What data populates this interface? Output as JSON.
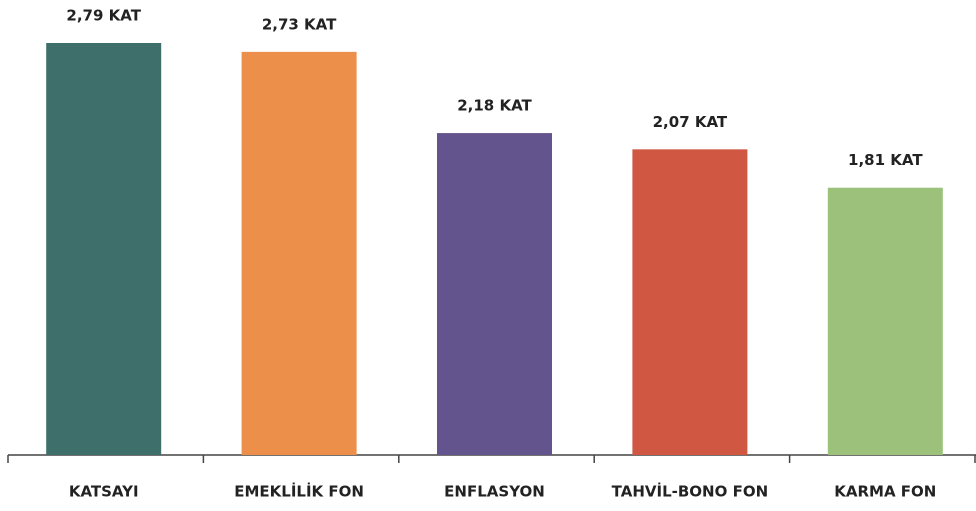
{
  "chart_data": {
    "type": "bar",
    "categories": [
      "KATSAYI",
      "EMEKLİLİK FON",
      "ENFLASYON",
      "TAHVİL-BONO FON",
      "KARMA FON"
    ],
    "values": [
      2.79,
      2.73,
      2.18,
      2.07,
      1.81
    ],
    "value_labels": [
      "2,79 KAT",
      "2,73 KAT",
      "2,18 KAT",
      "2,07 KAT",
      "1,81 KAT"
    ],
    "colors": [
      "#3e6f6a",
      "#ec8f4b",
      "#63548e",
      "#d05843",
      "#9bc17a"
    ]
  }
}
